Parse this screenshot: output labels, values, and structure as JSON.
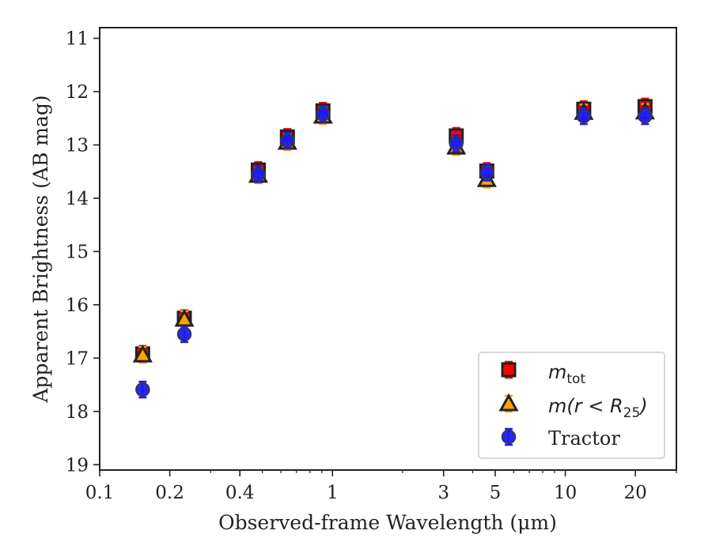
{
  "chart_data": {
    "type": "scatter",
    "xlabel": "Observed-frame Wavelength (μm)",
    "ylabel": "Apparent Brightness (AB mag)",
    "x_scale": "log",
    "xlim": [
      0.1,
      30
    ],
    "ylim": [
      19.1,
      10.8
    ],
    "y_inverted": true,
    "x_ticks": [
      0.1,
      0.2,
      0.4,
      1,
      3,
      5,
      10,
      20
    ],
    "x_tick_labels": [
      "0.1",
      "0.2",
      "0.4",
      "1",
      "3",
      "5",
      "10",
      "20"
    ],
    "y_ticks": [
      11,
      12,
      13,
      14,
      15,
      16,
      17,
      18,
      19
    ],
    "y_tick_labels": [
      "11",
      "12",
      "13",
      "14",
      "15",
      "16",
      "17",
      "18",
      "19"
    ],
    "grid": false,
    "legend_position": "bottom-right",
    "series": [
      {
        "name": "m_tot",
        "legend_label": {
          "base": "m",
          "sub": "tot"
        },
        "marker": "square",
        "color": "#ff0000",
        "edge_color": "#222222",
        "x": [
          0.153,
          0.231,
          0.48,
          0.64,
          0.91,
          3.4,
          4.6,
          12.0,
          22.0
        ],
        "y": [
          16.92,
          16.25,
          13.47,
          12.85,
          12.36,
          12.83,
          13.49,
          12.33,
          12.28
        ]
      },
      {
        "name": "m(r<R25)",
        "legend_label": {
          "base": "m(r < R",
          "sub": "25",
          "close": ")"
        },
        "marker": "triangle",
        "color": "#ffa500",
        "edge_color": "#222222",
        "x": [
          0.153,
          0.231,
          0.48,
          0.64,
          0.91,
          3.4,
          4.6,
          12.0,
          22.0
        ],
        "y": [
          16.94,
          16.27,
          13.57,
          12.95,
          12.46,
          13.04,
          13.65,
          12.39,
          12.38
        ]
      },
      {
        "name": "Tractor",
        "marker": "circle",
        "color": "#1a1aff",
        "edge_color": "#333366",
        "x": [
          0.153,
          0.231,
          0.48,
          0.64,
          0.91,
          3.4,
          4.6,
          12.0,
          22.0
        ],
        "y": [
          17.59,
          16.55,
          13.55,
          12.92,
          12.42,
          12.97,
          13.52,
          12.46,
          12.46
        ]
      }
    ]
  }
}
